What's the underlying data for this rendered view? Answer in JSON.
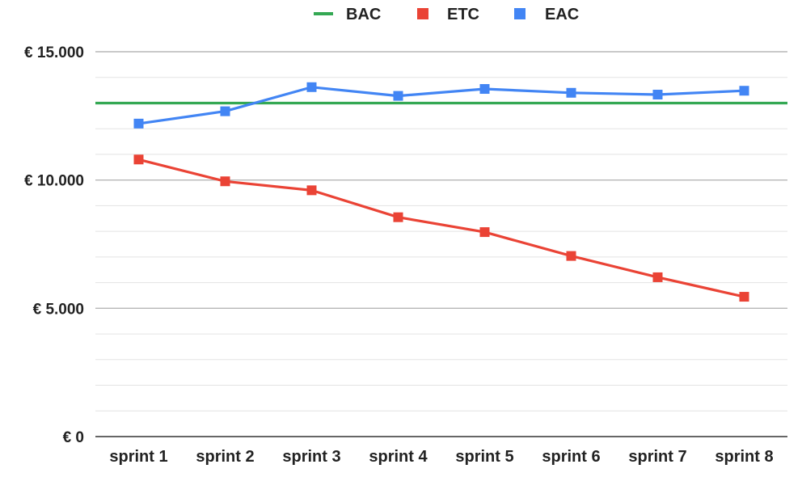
{
  "chart_data": {
    "type": "line",
    "categories": [
      "sprint 1",
      "sprint 2",
      "sprint 3",
      "sprint 4",
      "sprint 5",
      "sprint 6",
      "sprint 7",
      "sprint 8"
    ],
    "series": [
      {
        "name": "BAC",
        "color": "#34a853",
        "marker": "none",
        "values": [
          13000,
          13000,
          13000,
          13000,
          13000,
          13000,
          13000,
          13000
        ]
      },
      {
        "name": "ETC",
        "color": "#ea4335",
        "marker": "square",
        "values": [
          10800,
          9950,
          9600,
          8550,
          7970,
          7040,
          6210,
          5450
        ]
      },
      {
        "name": "EAC",
        "color": "#4285f4",
        "marker": "square",
        "values": [
          12200,
          12680,
          13620,
          13280,
          13550,
          13400,
          13330,
          13480
        ]
      }
    ],
    "y_ticks": [
      {
        "value": 0,
        "label": "€ 0"
      },
      {
        "value": 5000,
        "label": "€ 5.000"
      },
      {
        "value": 10000,
        "label": "€ 10.000"
      },
      {
        "value": 15000,
        "label": "€ 15.000"
      }
    ],
    "ylim": [
      0,
      15000
    ],
    "minor_gridlines_per_major": 5,
    "grid": true,
    "legend_position": "top",
    "title": "",
    "xlabel": "",
    "ylabel": ""
  }
}
